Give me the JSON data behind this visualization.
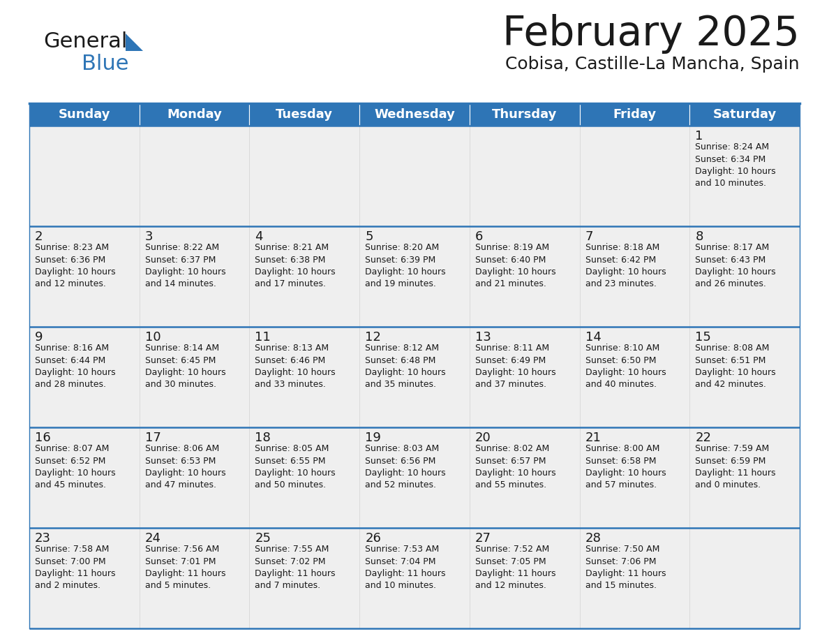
{
  "title": "February 2025",
  "subtitle": "Cobisa, Castille-La Mancha, Spain",
  "header_bg": "#2E75B6",
  "header_text": "#FFFFFF",
  "cell_bg": "#EFEFEF",
  "border_color": "#2E75B6",
  "text_color": "#1A1A1A",
  "day_headers": [
    "Sunday",
    "Monday",
    "Tuesday",
    "Wednesday",
    "Thursday",
    "Friday",
    "Saturday"
  ],
  "calendar_data": [
    [
      {
        "day": "",
        "info": ""
      },
      {
        "day": "",
        "info": ""
      },
      {
        "day": "",
        "info": ""
      },
      {
        "day": "",
        "info": ""
      },
      {
        "day": "",
        "info": ""
      },
      {
        "day": "",
        "info": ""
      },
      {
        "day": "1",
        "info": "Sunrise: 8:24 AM\nSunset: 6:34 PM\nDaylight: 10 hours\nand 10 minutes."
      }
    ],
    [
      {
        "day": "2",
        "info": "Sunrise: 8:23 AM\nSunset: 6:36 PM\nDaylight: 10 hours\nand 12 minutes."
      },
      {
        "day": "3",
        "info": "Sunrise: 8:22 AM\nSunset: 6:37 PM\nDaylight: 10 hours\nand 14 minutes."
      },
      {
        "day": "4",
        "info": "Sunrise: 8:21 AM\nSunset: 6:38 PM\nDaylight: 10 hours\nand 17 minutes."
      },
      {
        "day": "5",
        "info": "Sunrise: 8:20 AM\nSunset: 6:39 PM\nDaylight: 10 hours\nand 19 minutes."
      },
      {
        "day": "6",
        "info": "Sunrise: 8:19 AM\nSunset: 6:40 PM\nDaylight: 10 hours\nand 21 minutes."
      },
      {
        "day": "7",
        "info": "Sunrise: 8:18 AM\nSunset: 6:42 PM\nDaylight: 10 hours\nand 23 minutes."
      },
      {
        "day": "8",
        "info": "Sunrise: 8:17 AM\nSunset: 6:43 PM\nDaylight: 10 hours\nand 26 minutes."
      }
    ],
    [
      {
        "day": "9",
        "info": "Sunrise: 8:16 AM\nSunset: 6:44 PM\nDaylight: 10 hours\nand 28 minutes."
      },
      {
        "day": "10",
        "info": "Sunrise: 8:14 AM\nSunset: 6:45 PM\nDaylight: 10 hours\nand 30 minutes."
      },
      {
        "day": "11",
        "info": "Sunrise: 8:13 AM\nSunset: 6:46 PM\nDaylight: 10 hours\nand 33 minutes."
      },
      {
        "day": "12",
        "info": "Sunrise: 8:12 AM\nSunset: 6:48 PM\nDaylight: 10 hours\nand 35 minutes."
      },
      {
        "day": "13",
        "info": "Sunrise: 8:11 AM\nSunset: 6:49 PM\nDaylight: 10 hours\nand 37 minutes."
      },
      {
        "day": "14",
        "info": "Sunrise: 8:10 AM\nSunset: 6:50 PM\nDaylight: 10 hours\nand 40 minutes."
      },
      {
        "day": "15",
        "info": "Sunrise: 8:08 AM\nSunset: 6:51 PM\nDaylight: 10 hours\nand 42 minutes."
      }
    ],
    [
      {
        "day": "16",
        "info": "Sunrise: 8:07 AM\nSunset: 6:52 PM\nDaylight: 10 hours\nand 45 minutes."
      },
      {
        "day": "17",
        "info": "Sunrise: 8:06 AM\nSunset: 6:53 PM\nDaylight: 10 hours\nand 47 minutes."
      },
      {
        "day": "18",
        "info": "Sunrise: 8:05 AM\nSunset: 6:55 PM\nDaylight: 10 hours\nand 50 minutes."
      },
      {
        "day": "19",
        "info": "Sunrise: 8:03 AM\nSunset: 6:56 PM\nDaylight: 10 hours\nand 52 minutes."
      },
      {
        "day": "20",
        "info": "Sunrise: 8:02 AM\nSunset: 6:57 PM\nDaylight: 10 hours\nand 55 minutes."
      },
      {
        "day": "21",
        "info": "Sunrise: 8:00 AM\nSunset: 6:58 PM\nDaylight: 10 hours\nand 57 minutes."
      },
      {
        "day": "22",
        "info": "Sunrise: 7:59 AM\nSunset: 6:59 PM\nDaylight: 11 hours\nand 0 minutes."
      }
    ],
    [
      {
        "day": "23",
        "info": "Sunrise: 7:58 AM\nSunset: 7:00 PM\nDaylight: 11 hours\nand 2 minutes."
      },
      {
        "day": "24",
        "info": "Sunrise: 7:56 AM\nSunset: 7:01 PM\nDaylight: 11 hours\nand 5 minutes."
      },
      {
        "day": "25",
        "info": "Sunrise: 7:55 AM\nSunset: 7:02 PM\nDaylight: 11 hours\nand 7 minutes."
      },
      {
        "day": "26",
        "info": "Sunrise: 7:53 AM\nSunset: 7:04 PM\nDaylight: 11 hours\nand 10 minutes."
      },
      {
        "day": "27",
        "info": "Sunrise: 7:52 AM\nSunset: 7:05 PM\nDaylight: 11 hours\nand 12 minutes."
      },
      {
        "day": "28",
        "info": "Sunrise: 7:50 AM\nSunset: 7:06 PM\nDaylight: 11 hours\nand 15 minutes."
      },
      {
        "day": "",
        "info": ""
      }
    ]
  ],
  "fig_width": 11.88,
  "fig_height": 9.18,
  "dpi": 100
}
